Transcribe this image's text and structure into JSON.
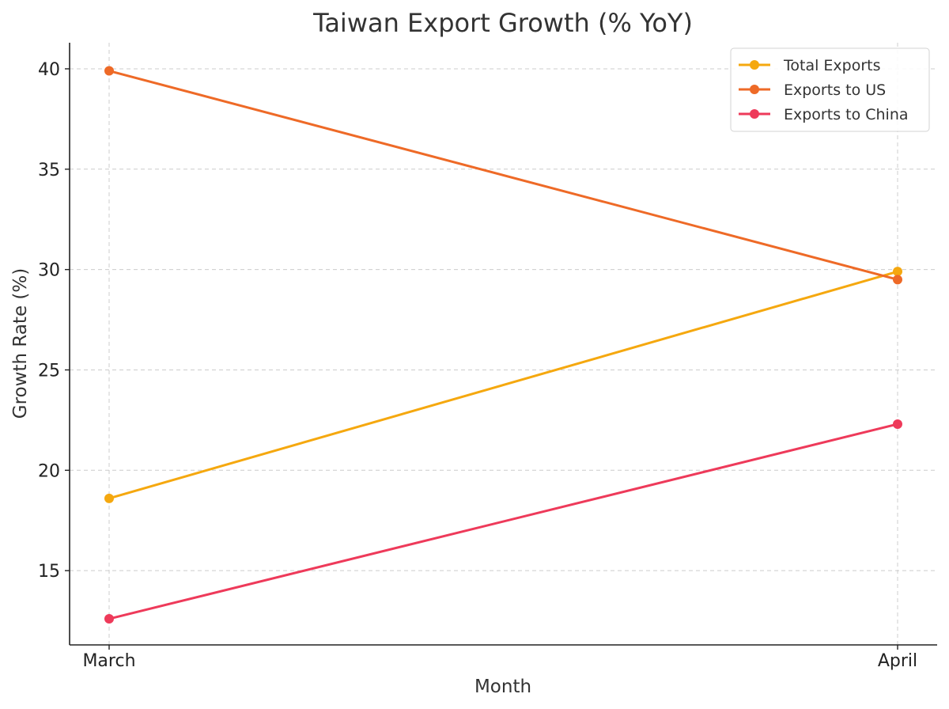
{
  "chart_data": {
    "type": "line",
    "title": "Taiwan Export Growth (% YoY)",
    "xlabel": "Month",
    "ylabel": "Growth Rate (%)",
    "categories": [
      "March",
      "April"
    ],
    "ylim": [
      11.3,
      41.3
    ],
    "yticks": [
      15,
      20,
      25,
      30,
      35,
      40
    ],
    "grid": true,
    "legend_position": "top-right",
    "series": [
      {
        "name": "Total Exports",
        "values": [
          18.6,
          29.9
        ],
        "color": "#F5A80F"
      },
      {
        "name": "Exports to US",
        "values": [
          39.9,
          29.5
        ],
        "color": "#EE6A27"
      },
      {
        "name": "Exports to China",
        "values": [
          12.6,
          22.3
        ],
        "color": "#EE3A5A"
      }
    ]
  }
}
